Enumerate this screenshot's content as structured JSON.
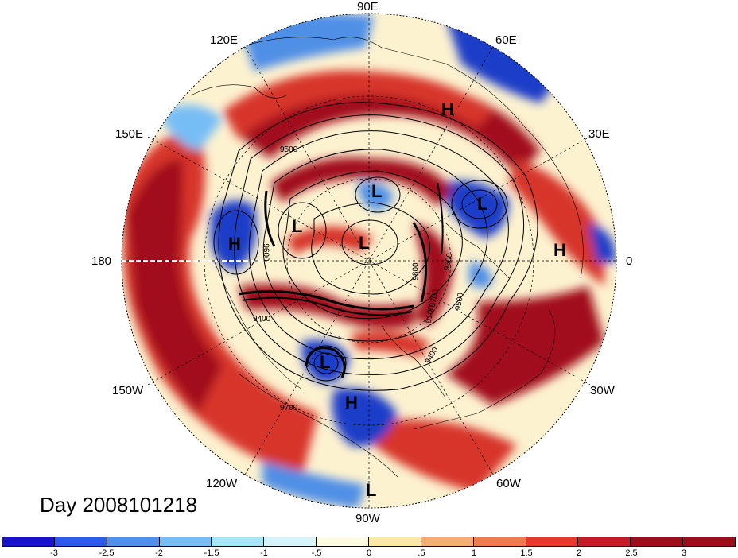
{
  "title_text": "Day 2008101218",
  "longitude_labels": [
    "90E",
    "60E",
    "30E",
    "0",
    "30W",
    "60W",
    "90W",
    "120W",
    "150W",
    "180",
    "150E",
    "120E"
  ],
  "pressure_centers": [
    "H",
    "L",
    "L",
    "L",
    "H",
    "L",
    "L",
    "H",
    "H",
    "L"
  ],
  "contour_labels": [
    "9500",
    "9600",
    "9400",
    "9800",
    "9700",
    "9400",
    "9100",
    "9500",
    "9700",
    "9600"
  ],
  "colorbar": {
    "ticks": [
      "-3",
      "-2.5",
      "-2",
      "-1.5",
      "-1",
      "-.5",
      "0",
      ".5",
      "1",
      "1.5",
      "2",
      "2.5",
      "3"
    ],
    "colors": [
      "#1a12c8",
      "#2d5be8",
      "#4f8ff0",
      "#77bdf5",
      "#a6e4f7",
      "#d6f4fb",
      "#fdfbe0",
      "#fbe7a6",
      "#f6ad72",
      "#ee7a4e",
      "#e3382c",
      "#c21d26",
      "#9c0d1a"
    ]
  },
  "colors": {
    "deep_red": "#a10e1c",
    "red": "#d7352c",
    "orange": "#f2a06a",
    "cream": "#fdf2d0",
    "light_blue": "#b9e6f5",
    "blue": "#4f8fe6",
    "deep_blue": "#1f3cc8"
  }
}
